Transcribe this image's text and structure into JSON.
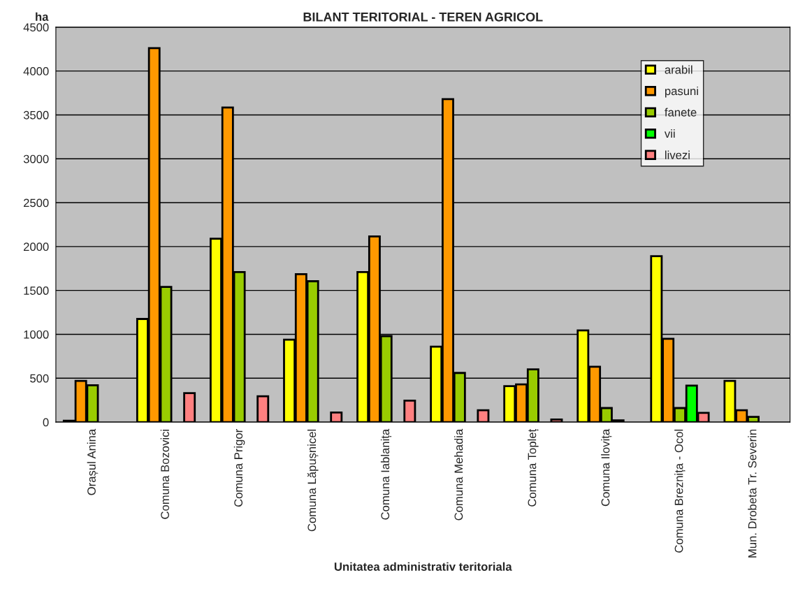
{
  "chart_data": {
    "type": "bar",
    "title": "BILANT TERITORIAL - TEREN AGRICOL",
    "xlabel": "Unitatea administrativ teritoriala",
    "ylabel": "ha",
    "categories": [
      "Orașul Anina",
      "Comuna Bozovici",
      "Comuna Prigor",
      "Comuna Lăpușnicel",
      "Comuna Iablanița",
      "Comuna Mehadia",
      "Comuna Topleț",
      "Comuna Ilovița",
      "Comuna Breznița - Ocol",
      "Mun. Drobeta Tr. Severin"
    ],
    "series": [
      {
        "name": "arabil",
        "color": "#ffff00",
        "values": [
          15,
          1175,
          2090,
          940,
          1710,
          860,
          410,
          1045,
          1890,
          470
        ]
      },
      {
        "name": "pasuni",
        "color": "#ff9900",
        "values": [
          470,
          4260,
          3585,
          1685,
          2115,
          3680,
          430,
          630,
          950,
          135
        ]
      },
      {
        "name": "fanete",
        "color": "#99cc00",
        "values": [
          420,
          1540,
          1710,
          1605,
          980,
          560,
          600,
          160,
          160,
          60
        ]
      },
      {
        "name": "vii",
        "color": "#00ff00",
        "values": [
          null,
          null,
          null,
          null,
          null,
          null,
          null,
          20,
          415,
          null
        ]
      },
      {
        "name": "livezi",
        "color": "#ff8080",
        "values": [
          null,
          330,
          295,
          110,
          245,
          135,
          30,
          null,
          105,
          null
        ]
      }
    ],
    "ylim": [
      0,
      4500
    ],
    "yticks": [
      0,
      500,
      1000,
      1500,
      2000,
      2500,
      3000,
      3500,
      4000,
      4500
    ],
    "grid": "y",
    "legend": "top right"
  }
}
